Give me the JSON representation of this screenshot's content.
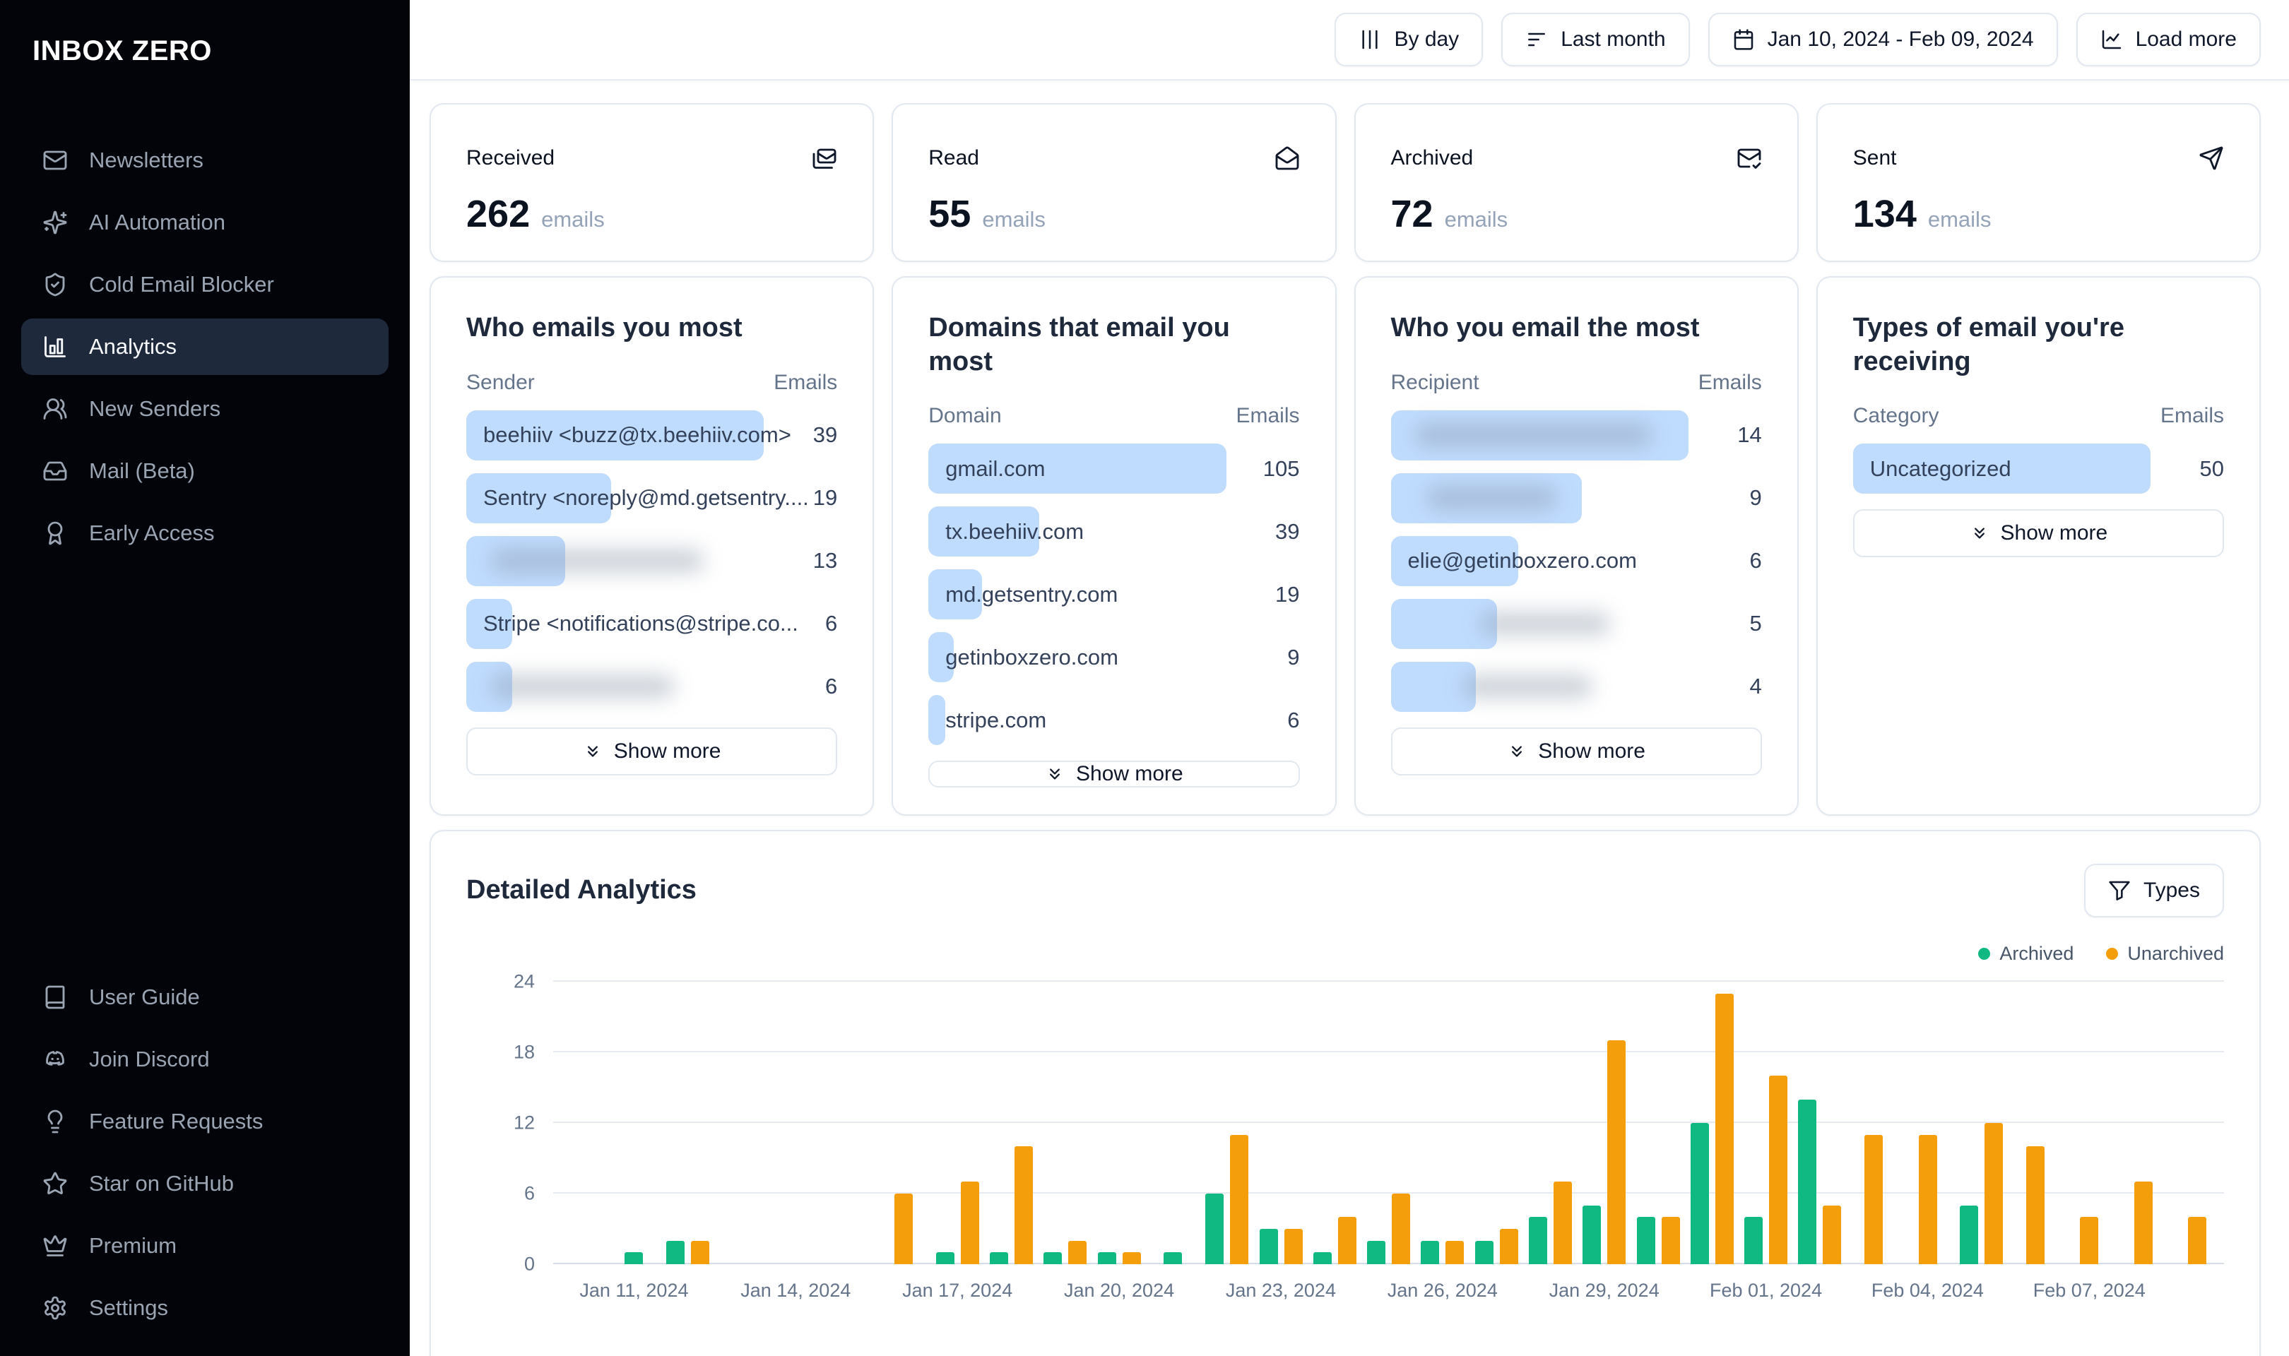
{
  "theme": {
    "archived_color": "#10b981",
    "unarchived_color": "#f59e0b",
    "list_bar_color": "#bfdbfe",
    "sidebar_active_bg": "#1e293b"
  },
  "sidebar": {
    "logo": "INBOX ZERO",
    "primary": [
      {
        "icon": "mail-icon",
        "label": "Newsletters",
        "active": false
      },
      {
        "icon": "sparkles-icon",
        "label": "AI Automation",
        "active": false
      },
      {
        "icon": "shield-check-icon",
        "label": "Cold Email Blocker",
        "active": false
      },
      {
        "icon": "bar-chart-icon",
        "label": "Analytics",
        "active": true
      },
      {
        "icon": "users-icon",
        "label": "New Senders",
        "active": false
      },
      {
        "icon": "inbox-icon",
        "label": "Mail (Beta)",
        "active": false
      },
      {
        "icon": "ribbon-icon",
        "label": "Early Access",
        "active": false
      }
    ],
    "secondary": [
      {
        "icon": "book-icon",
        "label": "User Guide"
      },
      {
        "icon": "discord-icon",
        "label": "Join Discord"
      },
      {
        "icon": "lightbulb-icon",
        "label": "Feature Requests"
      },
      {
        "icon": "star-icon",
        "label": "Star on GitHub"
      },
      {
        "icon": "crown-icon",
        "label": "Premium"
      },
      {
        "icon": "settings-icon",
        "label": "Settings"
      }
    ]
  },
  "topbar": {
    "buttons": [
      {
        "icon": "columns-icon",
        "label": "By day",
        "name": "group-by-day-button"
      },
      {
        "icon": "filter-lines-icon",
        "label": "Last month",
        "name": "period-select-button"
      },
      {
        "icon": "calendar-icon",
        "label": "Jan 10, 2024 - Feb 09, 2024",
        "name": "date-range-button"
      },
      {
        "icon": "chart-line-icon",
        "label": "Load more",
        "name": "load-more-button"
      }
    ]
  },
  "stats": [
    {
      "label": "Received",
      "value": "262",
      "unit": "emails",
      "icon": "mails-icon"
    },
    {
      "label": "Read",
      "value": "55",
      "unit": "emails",
      "icon": "mail-open-icon"
    },
    {
      "label": "Archived",
      "value": "72",
      "unit": "emails",
      "icon": "mail-check-icon"
    },
    {
      "label": "Sent",
      "value": "134",
      "unit": "emails",
      "icon": "send-icon"
    }
  ],
  "insight_cards": [
    {
      "title": "Who emails you most",
      "col1": "Sender",
      "col2": "Emails",
      "show_more": "Show more",
      "rows": [
        {
          "label": "beehiiv <buzz@tx.beehiiv.com>",
          "value": 39,
          "blurred": false
        },
        {
          "label": "Sentry <noreply@md.getsentry....",
          "value": 19,
          "blurred": false
        },
        {
          "label": "",
          "value": 13,
          "blurred": true,
          "blur_left": "8%",
          "blur_width": "72%"
        },
        {
          "label": "Stripe <notifications@stripe.co...",
          "value": 6,
          "blurred": false
        },
        {
          "label": "",
          "value": 6,
          "blurred": true,
          "blur_left": "8%",
          "blur_width": "62%"
        }
      ]
    },
    {
      "title": "Domains that email you most",
      "col1": "Domain",
      "col2": "Emails",
      "show_more": "Show more",
      "rows": [
        {
          "label": "gmail.com",
          "value": 105,
          "blurred": false
        },
        {
          "label": "tx.beehiiv.com",
          "value": 39,
          "blurred": false
        },
        {
          "label": "md.getsentry.com",
          "value": 19,
          "blurred": false
        },
        {
          "label": "getinboxzero.com",
          "value": 9,
          "blurred": false
        },
        {
          "label": "stripe.com",
          "value": 6,
          "blurred": false
        }
      ]
    },
    {
      "title": "Who you email the most",
      "col1": "Recipient",
      "col2": "Emails",
      "show_more": "Show more",
      "rows": [
        {
          "label": "",
          "value": 14,
          "blurred": true,
          "blur_left": "8%",
          "blur_width": "80%"
        },
        {
          "label": "",
          "value": 9,
          "blurred": true,
          "blur_left": "12%",
          "blur_width": "44%"
        },
        {
          "label": "elie@getinboxzero.com",
          "value": 6,
          "blurred": false
        },
        {
          "label": "",
          "value": 5,
          "blurred": true,
          "blur_left": "30%",
          "blur_width": "44%"
        },
        {
          "label": "",
          "value": 4,
          "blurred": true,
          "blur_left": "24%",
          "blur_width": "44%"
        }
      ]
    },
    {
      "title": "Types of email you're receiving",
      "col1": "Category",
      "col2": "Emails",
      "show_more": "Show more",
      "rows": [
        {
          "label": "Uncategorized",
          "value": 50,
          "blurred": false
        }
      ]
    }
  ],
  "detailed": {
    "title": "Detailed Analytics",
    "types_button": "Types",
    "legend": [
      {
        "label": "Archived",
        "color": "#10b981"
      },
      {
        "label": "Unarchived",
        "color": "#f59e0b"
      }
    ]
  },
  "chart_data": {
    "type": "bar",
    "title": "Detailed Analytics",
    "x": [
      "Jan 10, 2024",
      "Jan 11, 2024",
      "Jan 12, 2024",
      "Jan 13, 2024",
      "Jan 14, 2024",
      "Jan 15, 2024",
      "Jan 16, 2024",
      "Jan 17, 2024",
      "Jan 18, 2024",
      "Jan 19, 2024",
      "Jan 20, 2024",
      "Jan 21, 2024",
      "Jan 22, 2024",
      "Jan 23, 2024",
      "Jan 24, 2024",
      "Jan 25, 2024",
      "Jan 26, 2024",
      "Jan 27, 2024",
      "Jan 28, 2024",
      "Jan 29, 2024",
      "Jan 30, 2024",
      "Jan 31, 2024",
      "Feb 01, 2024",
      "Feb 02, 2024",
      "Feb 03, 2024",
      "Feb 04, 2024",
      "Feb 05, 2024",
      "Feb 06, 2024",
      "Feb 07, 2024",
      "Feb 08, 2024",
      "Feb 09, 2024"
    ],
    "series": [
      {
        "name": "Archived",
        "color": "#10b981",
        "values": [
          0,
          1,
          2,
          0,
          0,
          0,
          0,
          1,
          1,
          1,
          1,
          1,
          6,
          3,
          1,
          2,
          2,
          2,
          4,
          5,
          4,
          12,
          4,
          14,
          0,
          0,
          5,
          0,
          0,
          0,
          0
        ]
      },
      {
        "name": "Unarchived",
        "color": "#f59e0b",
        "values": [
          0,
          0,
          2,
          0,
          0,
          0,
          6,
          7,
          10,
          2,
          1,
          0,
          11,
          3,
          4,
          6,
          2,
          3,
          7,
          19,
          4,
          23,
          16,
          5,
          11,
          11,
          12,
          10,
          4,
          7,
          4
        ]
      }
    ],
    "tick_indices": [
      1,
      4,
      7,
      10,
      13,
      16,
      19,
      22,
      25,
      28
    ],
    "tick_labels": [
      "Jan 11, 2024",
      "Jan 14, 2024",
      "Jan 17, 2024",
      "Jan 20, 2024",
      "Jan 23, 2024",
      "Jan 26, 2024",
      "Jan 29, 2024",
      "Feb 01, 2024",
      "Feb 04, 2024",
      "Feb 07, 2024"
    ],
    "ylim": [
      0,
      24
    ],
    "yticks": [
      0,
      6,
      12,
      18,
      24
    ],
    "grid": true,
    "legend_position": "top-right"
  }
}
